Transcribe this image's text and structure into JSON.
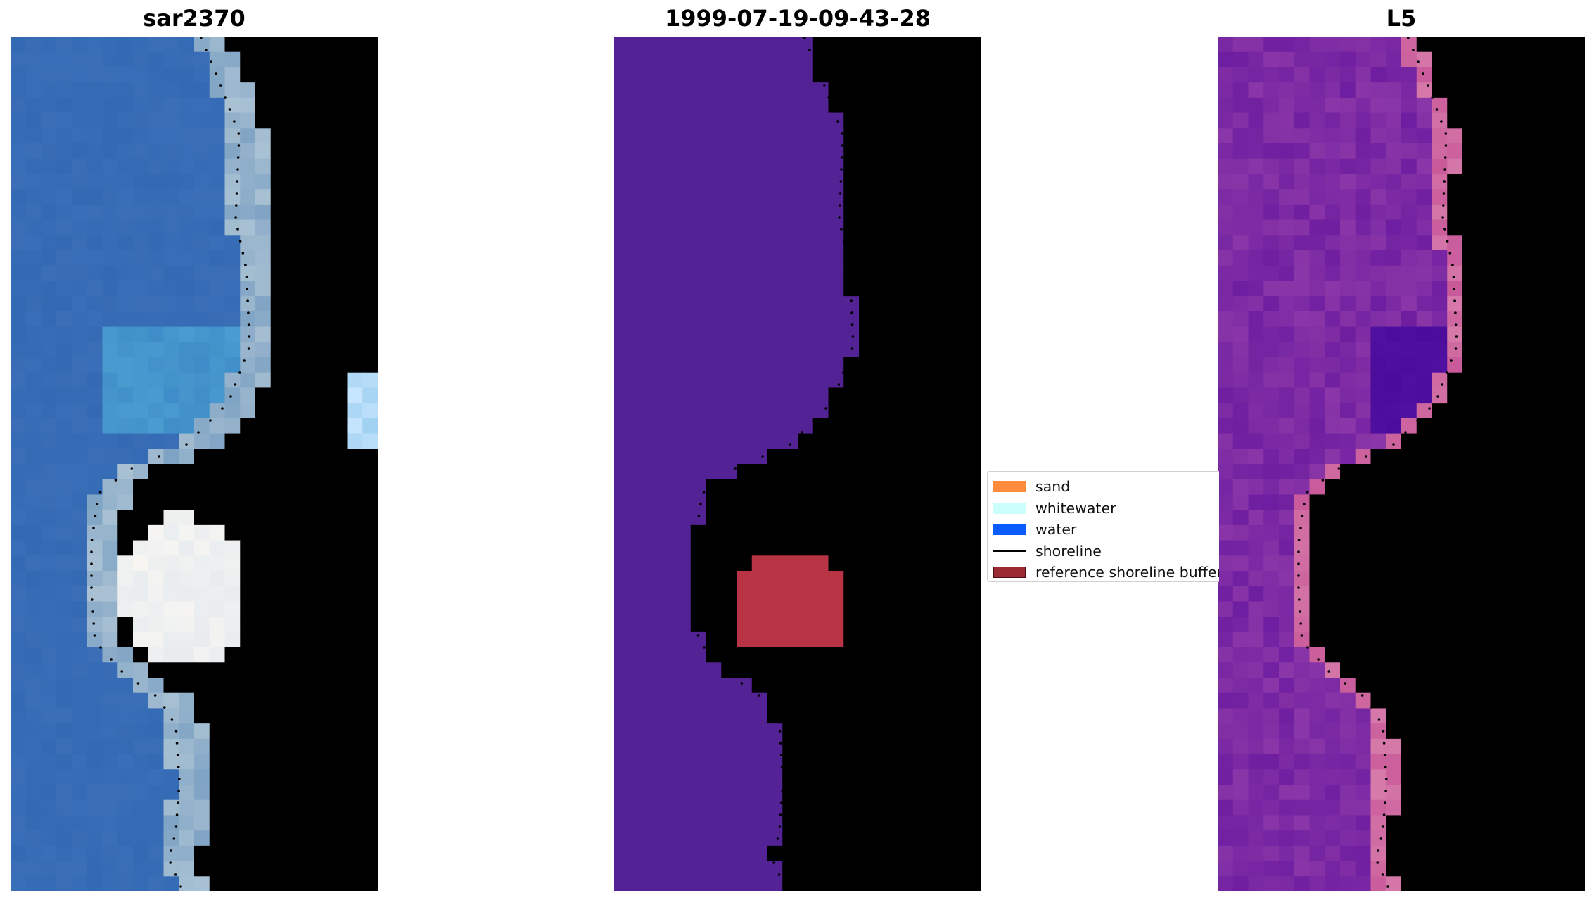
{
  "panels": [
    {
      "title": "sar2370",
      "kind": "rgb-satellite"
    },
    {
      "title": "1999-07-19-09-43-28",
      "kind": "classification"
    },
    {
      "title": "L5",
      "kind": "index-map"
    }
  ],
  "legend": {
    "items": [
      {
        "label": "sand",
        "color": "#ff8b3d",
        "type": "patch"
      },
      {
        "label": "whitewater",
        "color": "#ccfffb",
        "type": "patch"
      },
      {
        "label": "water",
        "color": "#0a5cff",
        "type": "patch"
      },
      {
        "label": "shoreline",
        "color": "#000000",
        "type": "line"
      },
      {
        "label": "reference shoreline buffer",
        "color": "#9b2a32",
        "type": "patch"
      }
    ]
  },
  "colors": {
    "water_class": "#532395",
    "sar_water": "#3a6fb8",
    "sar_sand": "#9fb7cc",
    "l5_low": "#7a22a8",
    "l5_high": "#c00a3a",
    "buffer_fill": "#b83445"
  }
}
